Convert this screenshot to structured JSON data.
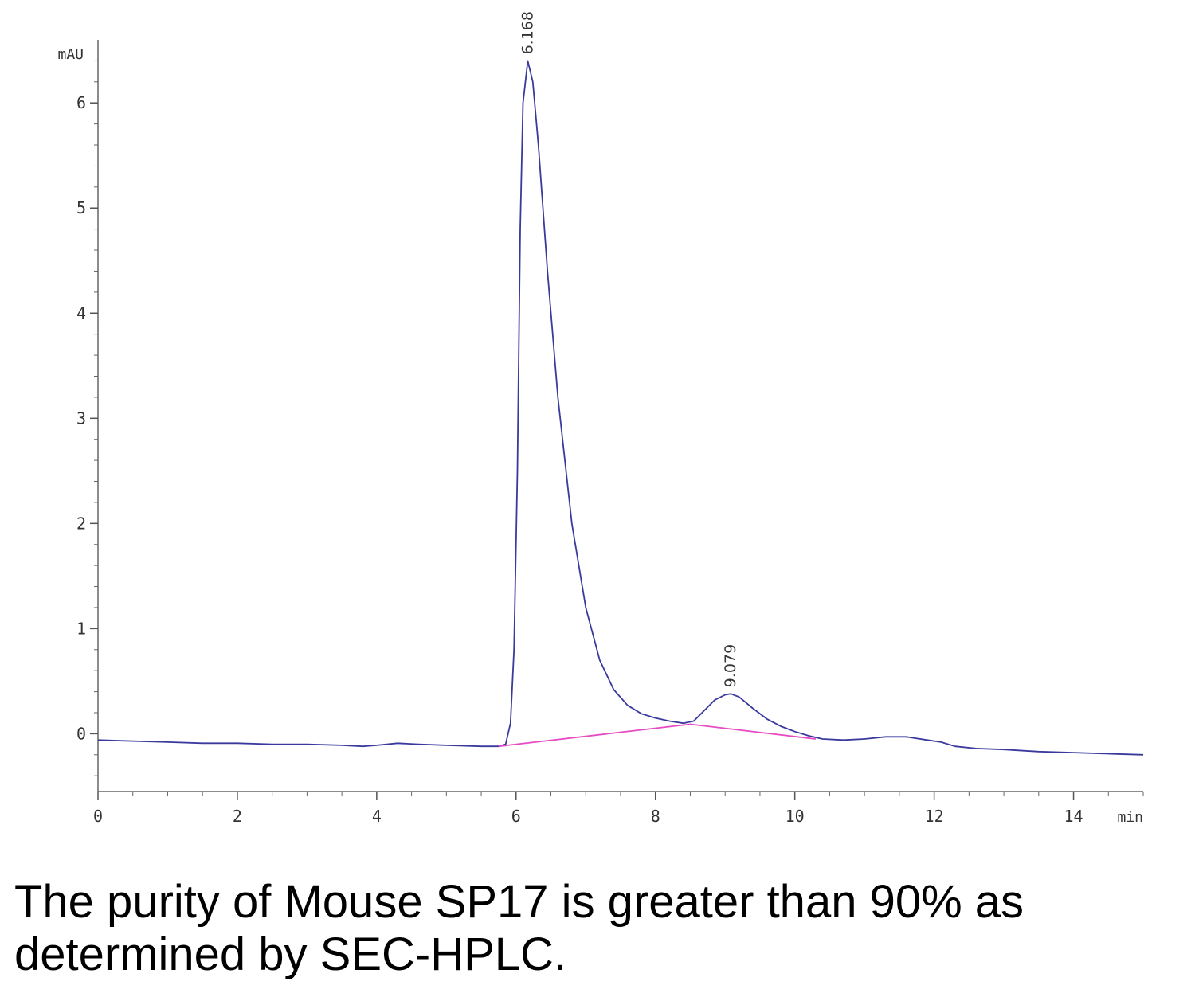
{
  "chart_data": {
    "type": "line",
    "y_unit": "mAU",
    "x_unit": "min",
    "xlim": [
      0,
      15
    ],
    "ylim": [
      -0.55,
      6.6
    ],
    "x_ticks": [
      0,
      2,
      4,
      6,
      8,
      10,
      12,
      14
    ],
    "y_ticks": [
      0,
      1,
      2,
      3,
      4,
      5,
      6
    ],
    "grid": false,
    "series": [
      {
        "color": "#3a3a9e",
        "points": [
          [
            0,
            -0.06
          ],
          [
            0.5,
            -0.07
          ],
          [
            1.0,
            -0.08
          ],
          [
            1.5,
            -0.09
          ],
          [
            2.0,
            -0.09
          ],
          [
            2.5,
            -0.1
          ],
          [
            3.0,
            -0.1
          ],
          [
            3.5,
            -0.11
          ],
          [
            3.8,
            -0.12
          ],
          [
            4.0,
            -0.11
          ],
          [
            4.3,
            -0.09
          ],
          [
            4.6,
            -0.1
          ],
          [
            5.0,
            -0.11
          ],
          [
            5.5,
            -0.12
          ],
          [
            5.75,
            -0.12
          ],
          [
            5.85,
            -0.1
          ],
          [
            5.92,
            0.1
          ],
          [
            5.97,
            0.8
          ],
          [
            6.02,
            2.5
          ],
          [
            6.06,
            4.8
          ],
          [
            6.1,
            6.0
          ],
          [
            6.168,
            6.4
          ],
          [
            6.24,
            6.2
          ],
          [
            6.32,
            5.6
          ],
          [
            6.45,
            4.4
          ],
          [
            6.6,
            3.2
          ],
          [
            6.8,
            2.0
          ],
          [
            7.0,
            1.2
          ],
          [
            7.2,
            0.7
          ],
          [
            7.4,
            0.42
          ],
          [
            7.6,
            0.27
          ],
          [
            7.8,
            0.19
          ],
          [
            8.0,
            0.15
          ],
          [
            8.2,
            0.12
          ],
          [
            8.4,
            0.1
          ],
          [
            8.55,
            0.12
          ],
          [
            8.7,
            0.22
          ],
          [
            8.85,
            0.32
          ],
          [
            9.0,
            0.37
          ],
          [
            9.079,
            0.38
          ],
          [
            9.2,
            0.35
          ],
          [
            9.4,
            0.24
          ],
          [
            9.6,
            0.14
          ],
          [
            9.8,
            0.07
          ],
          [
            10.0,
            0.02
          ],
          [
            10.2,
            -0.02
          ],
          [
            10.4,
            -0.05
          ],
          [
            10.7,
            -0.06
          ],
          [
            11.0,
            -0.05
          ],
          [
            11.3,
            -0.03
          ],
          [
            11.6,
            -0.03
          ],
          [
            11.9,
            -0.06
          ],
          [
            12.1,
            -0.08
          ],
          [
            12.3,
            -0.12
          ],
          [
            12.6,
            -0.14
          ],
          [
            13.0,
            -0.15
          ],
          [
            13.5,
            -0.17
          ],
          [
            14.0,
            -0.18
          ],
          [
            14.5,
            -0.19
          ],
          [
            15.0,
            -0.2
          ]
        ]
      },
      {
        "color": "#e64bc4",
        "points": [
          [
            5.75,
            -0.12
          ],
          [
            8.5,
            0.09
          ],
          [
            10.3,
            -0.05
          ]
        ]
      }
    ],
    "peaks": [
      {
        "label": "6.168",
        "x": 6.168,
        "y": 6.4
      },
      {
        "label": "9.079",
        "x": 9.079,
        "y": 0.38
      }
    ]
  },
  "caption": "The purity of Mouse SP17 is greater than 90% as determined by SEC-HPLC."
}
